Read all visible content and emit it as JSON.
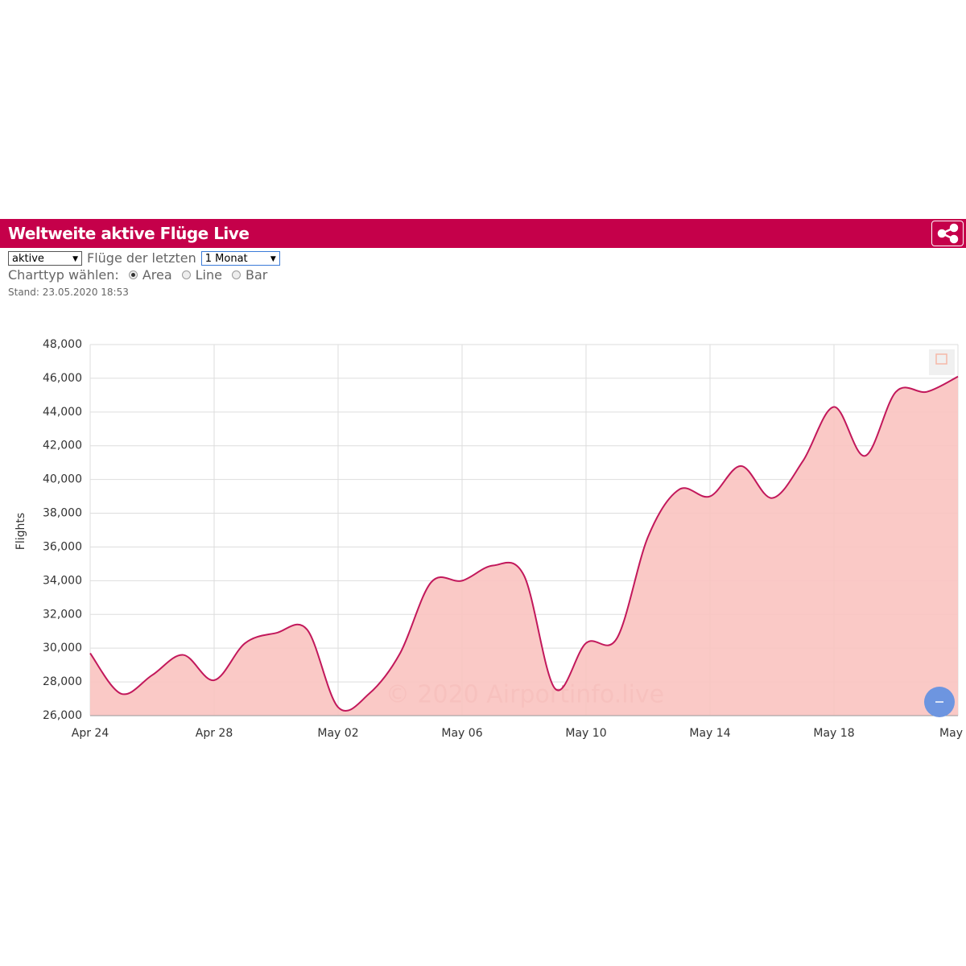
{
  "header": {
    "title": "Weltweite aktive Flüge Live"
  },
  "controls": {
    "type_select": "aktive",
    "period_label": "Flüge der letzten",
    "period_select": "1 Monat",
    "chart_type_label": "Charttyp wählen:",
    "chart_types": [
      "Area",
      "Line",
      "Bar"
    ],
    "selected_chart_type": 0,
    "stand": "Stand: 23.05.2020 18:53"
  },
  "chart_data": {
    "type": "area",
    "ylabel": "Flights",
    "watermark": "© 2020 Airportinfo.live",
    "categories": [
      "Apr 24",
      null,
      null,
      null,
      "Apr 28",
      null,
      null,
      null,
      "May 02",
      null,
      null,
      null,
      "May 06",
      null,
      null,
      null,
      "May 10",
      null,
      null,
      null,
      "May 14",
      null,
      null,
      null,
      "May 18",
      null,
      null,
      null,
      "May"
    ],
    "values": [
      29700,
      27300,
      28400,
      29600,
      28100,
      30300,
      30900,
      31100,
      26500,
      27300,
      29700,
      33900,
      34000,
      34900,
      34300,
      27600,
      30300,
      30600,
      36600,
      39400,
      39000,
      40800,
      38900,
      41100,
      44300,
      41400,
      45200,
      45200,
      46100
    ],
    "color": "#c2185b",
    "fill_color": "#f9c3c0",
    "ylim": [
      26000,
      48000
    ],
    "yticks": [
      {
        "value": 26000,
        "label": "26,000"
      },
      {
        "value": 28000,
        "label": "28,000"
      },
      {
        "value": 30000,
        "label": "30,000"
      },
      {
        "value": 32000,
        "label": "32,000"
      },
      {
        "value": 34000,
        "label": "34,000"
      },
      {
        "value": 36000,
        "label": "36,000"
      },
      {
        "value": 38000,
        "label": "38,000"
      },
      {
        "value": 40000,
        "label": "40,000"
      },
      {
        "value": 42000,
        "label": "42,000"
      },
      {
        "value": 44000,
        "label": "44,000"
      },
      {
        "value": 46000,
        "label": "46,000"
      },
      {
        "value": 48000,
        "label": "48,000"
      }
    ],
    "grid": true
  }
}
